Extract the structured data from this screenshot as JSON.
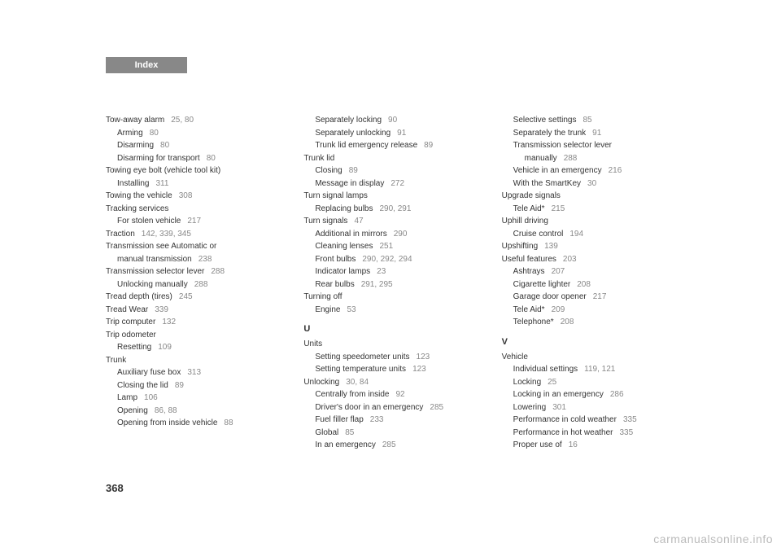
{
  "header": {
    "title": "Index"
  },
  "pageNumber": "368",
  "watermark": "carmanualsonline.info",
  "col1": [
    {
      "text": "Tow-away alarm",
      "pages": "25, 80",
      "indent": 0
    },
    {
      "text": "Arming",
      "pages": "80",
      "indent": 1
    },
    {
      "text": "Disarming",
      "pages": "80",
      "indent": 1
    },
    {
      "text": "Disarming for transport",
      "pages": "80",
      "indent": 1
    },
    {
      "text": "Towing eye bolt (vehicle tool kit)",
      "pages": "",
      "indent": 0
    },
    {
      "text": "Installing",
      "pages": "311",
      "indent": 1
    },
    {
      "text": "Towing the vehicle",
      "pages": "308",
      "indent": 0
    },
    {
      "text": "Tracking services",
      "pages": "",
      "indent": 0
    },
    {
      "text": "For stolen vehicle",
      "pages": "217",
      "indent": 1
    },
    {
      "text": "Traction",
      "pages": "142, 339, 345",
      "indent": 0
    },
    {
      "text": "Transmission see Automatic or",
      "pages": "",
      "indent": 0
    },
    {
      "text": "manual transmission",
      "pages": "238",
      "indent": 1
    },
    {
      "text": "Transmission selector lever",
      "pages": "288",
      "indent": 0
    },
    {
      "text": "Unlocking manually",
      "pages": "288",
      "indent": 1
    },
    {
      "text": "Tread depth (tires)",
      "pages": "245",
      "indent": 0
    },
    {
      "text": "Tread Wear",
      "pages": "339",
      "indent": 0
    },
    {
      "text": "Trip computer",
      "pages": "132",
      "indent": 0
    },
    {
      "text": "Trip odometer",
      "pages": "",
      "indent": 0
    },
    {
      "text": "Resetting",
      "pages": "109",
      "indent": 1
    },
    {
      "text": "Trunk",
      "pages": "",
      "indent": 0
    },
    {
      "text": "Auxiliary fuse box",
      "pages": "313",
      "indent": 1
    },
    {
      "text": "Closing the lid",
      "pages": "89",
      "indent": 1
    },
    {
      "text": "Lamp",
      "pages": "106",
      "indent": 1
    },
    {
      "text": "Opening",
      "pages": "86, 88",
      "indent": 1
    },
    {
      "text": "Opening from inside vehicle",
      "pages": "88",
      "indent": 1
    }
  ],
  "col2a": [
    {
      "text": "Separately locking",
      "pages": "90",
      "indent": 1
    },
    {
      "text": "Separately unlocking",
      "pages": "91",
      "indent": 1
    },
    {
      "text": "Trunk lid emergency release",
      "pages": "89",
      "indent": 1
    },
    {
      "text": "Trunk lid",
      "pages": "",
      "indent": 0
    },
    {
      "text": "Closing",
      "pages": "89",
      "indent": 1
    },
    {
      "text": "Message in display",
      "pages": "272",
      "indent": 1
    },
    {
      "text": "Turn signal lamps",
      "pages": "",
      "indent": 0
    },
    {
      "text": "Replacing bulbs",
      "pages": "290, 291",
      "indent": 1
    },
    {
      "text": "Turn signals",
      "pages": "47",
      "indent": 0
    },
    {
      "text": "Additional in mirrors",
      "pages": "290",
      "indent": 1
    },
    {
      "text": "Cleaning lenses",
      "pages": "251",
      "indent": 1
    },
    {
      "text": "Front bulbs",
      "pages": "290, 292, 294",
      "indent": 1
    },
    {
      "text": "Indicator lamps",
      "pages": "23",
      "indent": 1
    },
    {
      "text": "Rear bulbs",
      "pages": "291, 295",
      "indent": 1
    },
    {
      "text": "Turning off",
      "pages": "",
      "indent": 0
    },
    {
      "text": "Engine",
      "pages": "53",
      "indent": 1
    }
  ],
  "sectionU": "U",
  "col2b": [
    {
      "text": "Units",
      "pages": "",
      "indent": 0
    },
    {
      "text": "Setting speedometer units",
      "pages": "123",
      "indent": 1
    },
    {
      "text": "Setting temperature units",
      "pages": "123",
      "indent": 1
    },
    {
      "text": "Unlocking",
      "pages": "30, 84",
      "indent": 0
    },
    {
      "text": "Centrally from inside",
      "pages": "92",
      "indent": 1
    },
    {
      "text": "Driver's door in an emergency",
      "pages": "285",
      "indent": 1
    },
    {
      "text": "Fuel filler flap",
      "pages": "233",
      "indent": 1
    },
    {
      "text": "Global",
      "pages": "85",
      "indent": 1
    },
    {
      "text": "In an emergency",
      "pages": "285",
      "indent": 1
    }
  ],
  "col3a": [
    {
      "text": "Selective settings",
      "pages": "85",
      "indent": 1
    },
    {
      "text": "Separately the trunk",
      "pages": "91",
      "indent": 1
    },
    {
      "text": "Transmission selector lever",
      "pages": "",
      "indent": 1
    },
    {
      "text": "manually",
      "pages": "288",
      "indent": 2
    },
    {
      "text": "Vehicle in an emergency",
      "pages": "216",
      "indent": 1
    },
    {
      "text": "With the SmartKey",
      "pages": "30",
      "indent": 1
    },
    {
      "text": "Upgrade signals",
      "pages": "",
      "indent": 0
    },
    {
      "text": "Tele Aid*",
      "pages": "215",
      "indent": 1
    },
    {
      "text": "Uphill driving",
      "pages": "",
      "indent": 0
    },
    {
      "text": "Cruise control",
      "pages": "194",
      "indent": 1
    },
    {
      "text": "Upshifting",
      "pages": "139",
      "indent": 0
    },
    {
      "text": "Useful features",
      "pages": "203",
      "indent": 0
    },
    {
      "text": "Ashtrays",
      "pages": "207",
      "indent": 1
    },
    {
      "text": "Cigarette lighter",
      "pages": "208",
      "indent": 1
    },
    {
      "text": "Garage door opener",
      "pages": "217",
      "indent": 1
    },
    {
      "text": "Tele Aid*",
      "pages": "209",
      "indent": 1
    },
    {
      "text": "Telephone*",
      "pages": "208",
      "indent": 1
    }
  ],
  "sectionV": "V",
  "col3b": [
    {
      "text": "Vehicle",
      "pages": "",
      "indent": 0
    },
    {
      "text": "Individual settings",
      "pages": "119, 121",
      "indent": 1
    },
    {
      "text": "Locking",
      "pages": "25",
      "indent": 1
    },
    {
      "text": "Locking in an emergency",
      "pages": "286",
      "indent": 1
    },
    {
      "text": "Lowering",
      "pages": "301",
      "indent": 1
    },
    {
      "text": "Performance in cold weather",
      "pages": "335",
      "indent": 1
    },
    {
      "text": "Performance in hot weather",
      "pages": "335",
      "indent": 1
    },
    {
      "text": "Proper use of",
      "pages": "16",
      "indent": 1
    }
  ]
}
